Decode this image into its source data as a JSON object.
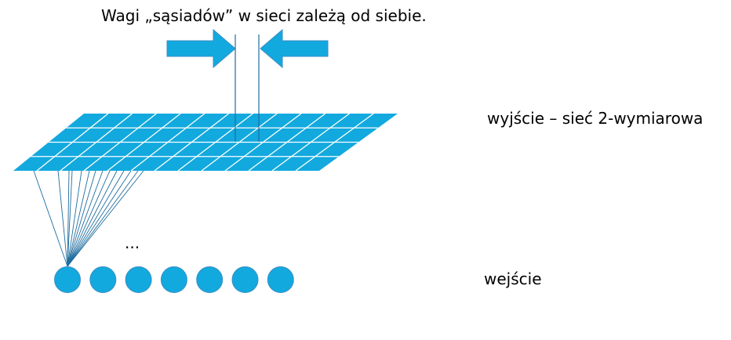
{
  "diagram": {
    "title": "Wagi „sąsiadów” w sieci zależą od siebie.",
    "output_label": "wyjście – sieć 2-wymiarowa",
    "input_label": "wejście",
    "ellipsis": "...",
    "grid": {
      "rows": 4,
      "cols": 13
    },
    "input_nodes": 7,
    "colors": {
      "fill": "#12a9de",
      "node_stroke": "#3a8ec4",
      "grid_line": "#ffffff",
      "connection": "#1f6d9e"
    }
  }
}
